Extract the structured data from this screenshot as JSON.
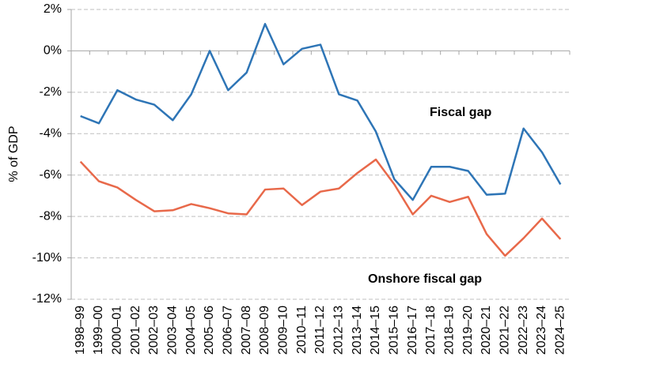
{
  "chart_data": {
    "type": "line",
    "y_label": "% of GDP",
    "categories": [
      "1998–99",
      "1999–00",
      "2000–01",
      "2001–02",
      "2002–03",
      "2003–04",
      "2004–05",
      "2005–06",
      "2006–07",
      "2007–08",
      "2008–09",
      "2009–10",
      "2010–11",
      "2011–12",
      "2012–13",
      "2013–14",
      "2014–15",
      "2015–16",
      "2016–17",
      "2017–18",
      "2018–19",
      "2019–20",
      "2020–21",
      "2021–22",
      "2022–23",
      "2023–24",
      "2024–25"
    ],
    "series": [
      {
        "name": "Fiscal gap",
        "color": "#2e75b6",
        "values": [
          -3.15,
          -3.5,
          -1.9,
          -2.35,
          -2.6,
          -3.35,
          -2.1,
          0.0,
          -1.9,
          -1.05,
          1.3,
          -0.65,
          0.1,
          0.3,
          -2.1,
          -2.4,
          -3.9,
          -6.2,
          -7.2,
          -5.6,
          -5.6,
          -5.8,
          -6.95,
          -6.9,
          -3.75,
          -4.9,
          -6.45
        ]
      },
      {
        "name": "Onshore fiscal gap",
        "color": "#e8694a",
        "values": [
          -5.35,
          -6.3,
          -6.6,
          -7.2,
          -7.75,
          -7.7,
          -7.4,
          -7.6,
          -7.85,
          -7.9,
          -6.7,
          -6.65,
          -7.45,
          -6.8,
          -6.65,
          -5.9,
          -5.25,
          -6.45,
          -7.9,
          -7.0,
          -7.3,
          -7.05,
          -8.85,
          -9.9,
          -9.05,
          -8.1,
          -9.1
        ]
      }
    ],
    "ylim": [
      -12,
      2
    ],
    "yticks": [
      {
        "value": -12,
        "label": "-12%"
      },
      {
        "value": -10,
        "label": "-10%"
      },
      {
        "value": -8,
        "label": "-8%"
      },
      {
        "value": -6,
        "label": "-6%"
      },
      {
        "value": -4,
        "label": "-4%"
      },
      {
        "value": -2,
        "label": "-2%"
      },
      {
        "value": 0,
        "label": "0%"
      },
      {
        "value": 2,
        "label": "2%"
      }
    ],
    "grid": true
  }
}
